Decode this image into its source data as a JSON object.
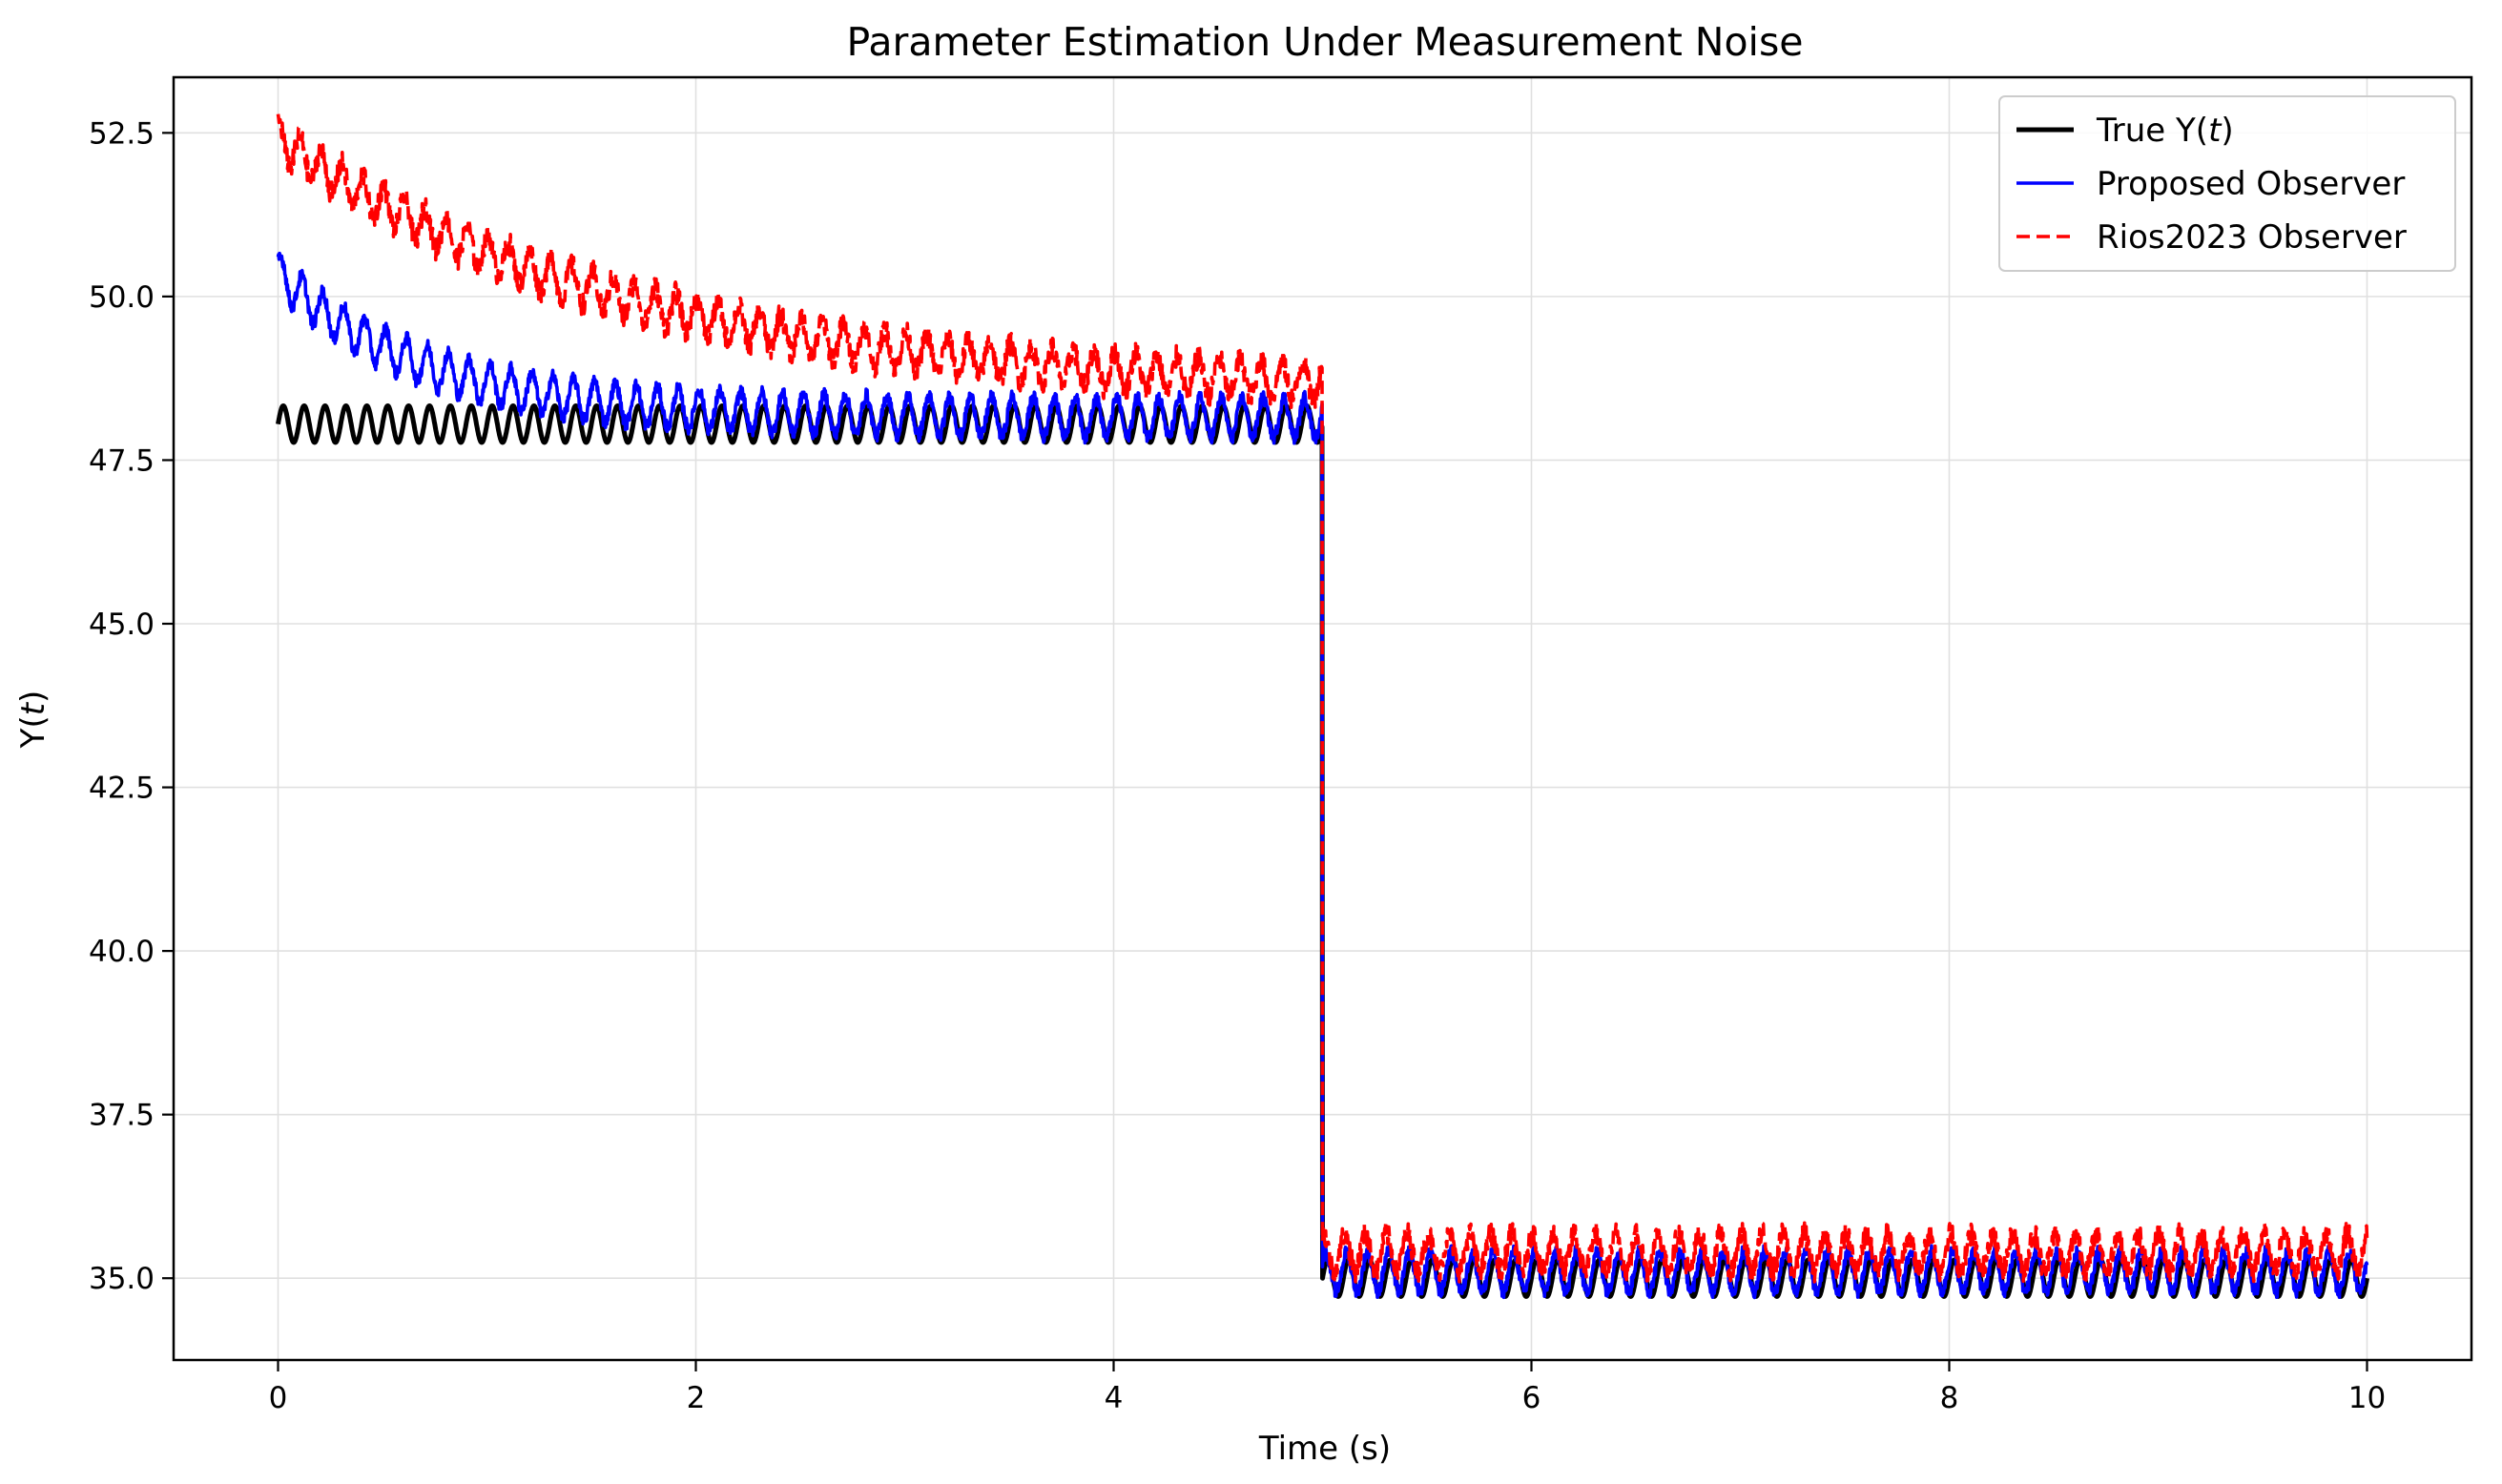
{
  "chart_data": {
    "type": "line",
    "title": "Parameter Estimation Under Measurement Noise",
    "xlabel": "Time (s)",
    "ylabel": "Y(t)",
    "xlim": [
      -0.5,
      10.5
    ],
    "ylim": [
      33.75,
      53.35
    ],
    "xticks": [
      0,
      2,
      4,
      6,
      8,
      10
    ],
    "xtick_labels": [
      "0",
      "2",
      "4",
      "6",
      "8",
      "10"
    ],
    "yticks": [
      35.0,
      37.5,
      40.0,
      42.5,
      45.0,
      47.5,
      50.0,
      52.5
    ],
    "ytick_labels": [
      "35.0",
      "37.5",
      "40.0",
      "42.5",
      "45.0",
      "47.5",
      "50.0",
      "52.5"
    ],
    "grid": true,
    "legend_position": "top-right",
    "step_time": 5.0,
    "series": [
      {
        "name": "True Y(t)",
        "legend_prefix": "True Y(",
        "legend_var": "t",
        "legend_suffix": ")",
        "color": "#000000",
        "style": "solid",
        "level_before": 48.05,
        "level_after": 35.0,
        "oscillation_amplitude": 0.28,
        "oscillation_period": 0.1,
        "initial_offset": 0.0,
        "decay_time_constant": 1.0,
        "noise": 0.0
      },
      {
        "name": "Proposed Observer",
        "legend_prefix": "Proposed Observer",
        "legend_var": "",
        "legend_suffix": "",
        "color": "#0000ff",
        "style": "solid",
        "level_before": 48.15,
        "level_after": 35.1,
        "oscillation_amplitude": 0.3,
        "oscillation_period": 0.1,
        "initial_offset": 2.2,
        "decay_time_constant": 0.7,
        "noise": 0.2
      },
      {
        "name": "Rios2023 Observer",
        "legend_prefix": "Rios2023 Observer",
        "legend_var": "",
        "legend_suffix": "",
        "color": "#ff0000",
        "style": "dashed",
        "level_before": 48.5,
        "level_after": 35.4,
        "oscillation_amplitude": 0.28,
        "oscillation_period": 0.1,
        "initial_offset": 3.9,
        "decay_time_constant": 1.7,
        "noise": 0.35
      }
    ]
  }
}
